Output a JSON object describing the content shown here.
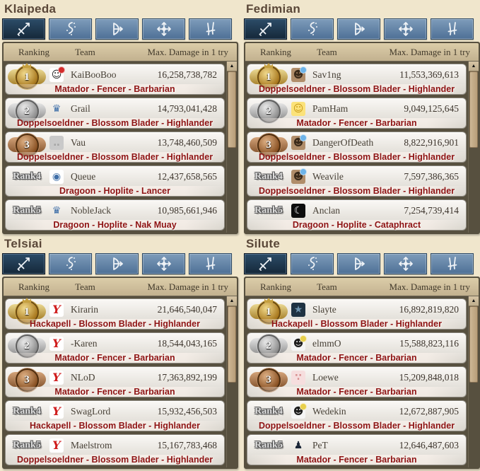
{
  "header": {
    "ranking": "Ranking",
    "team": "Team",
    "damage": "Max. Damage in 1 try"
  },
  "tabs": [
    {
      "name": "swordsman",
      "icon": "sword-icon",
      "active": true
    },
    {
      "name": "wizard",
      "icon": "wizard-staff-icon",
      "active": false
    },
    {
      "name": "archer",
      "icon": "bow-icon",
      "active": false
    },
    {
      "name": "cleric",
      "icon": "cleric-cross-icon",
      "active": false
    },
    {
      "name": "scout",
      "icon": "daggers-icon",
      "active": false
    }
  ],
  "colors": {
    "background": "#f0e6cc",
    "panel_border": "#57503f",
    "tab_active": "#16293c",
    "tab_inactive": "#5d82a8",
    "class_text_red": "#8e1313",
    "gold": "#a9791f",
    "silver": "#8e8e8e",
    "bronze": "#8a5224"
  },
  "panels": [
    {
      "title": "Klaipeda",
      "rows": [
        {
          "rank": "1",
          "medal": "gold",
          "team": "KaiBooBoo",
          "damage": "16,258,738,782",
          "classes": "Matador - Fencer - Barbarian",
          "icon": {
            "name": "santa-penguin-icon",
            "bg": "#ffffff",
            "fg": "#222222",
            "glyph": "☺",
            "accent": "#d42b2b"
          }
        },
        {
          "rank": "2",
          "medal": "silver",
          "team": "Grail",
          "damage": "14,793,041,428",
          "classes": "Doppelsoeldner - Blossom Blader - Highlander",
          "icon": {
            "name": "blue-trophy-icon",
            "bg": "transparent",
            "fg": "#3f6fa8",
            "glyph": "♛"
          }
        },
        {
          "rank": "3",
          "medal": "bronze",
          "team": "Vau",
          "damage": "13,748,460,509",
          "classes": "Doppelsoeldner - Blossom Blader - Highlander",
          "icon": {
            "name": "gray-blank-icon",
            "bg": "#c9c9c9",
            "fg": "#a5a5a5",
            "glyph": "‥"
          }
        },
        {
          "rank_label": "Rank4",
          "team": "Queue",
          "damage": "12,437,658,565",
          "classes": "Dragoon - Hoplite - Lancer",
          "icon": {
            "name": "blue-round-emblem-icon",
            "bg": "#ffffff",
            "fg": "#3f6fa8",
            "glyph": "◉"
          }
        },
        {
          "rank_label": "Rank5",
          "team": "NobleJack",
          "damage": "10,985,661,946",
          "classes": "Dragoon - Hoplite - Nak Muay",
          "icon": {
            "name": "blue-trophy-icon",
            "bg": "transparent",
            "fg": "#3f6fa8",
            "glyph": "♛"
          }
        }
      ]
    },
    {
      "title": "Fedimian",
      "rows": [
        {
          "rank": "1",
          "medal": "gold",
          "team": "Sav1ng",
          "damage": "11,553,369,613",
          "classes": "Doppelsoeldner - Blossom Blader - Highlander",
          "icon": {
            "name": "anime-avatar-icon",
            "bg": "#b08d6a",
            "fg": "#3a2a1a",
            "glyph": "☻",
            "accent": "#6db3e8"
          }
        },
        {
          "rank": "2",
          "medal": "silver",
          "team": "PamHam",
          "damage": "9,049,125,645",
          "classes": "Matador - Fencer - Barbarian",
          "icon": {
            "name": "yellow-chick-icon",
            "bg": "#fbe27a",
            "fg": "#c99a16",
            "glyph": "☺"
          }
        },
        {
          "rank": "3",
          "medal": "bronze",
          "team": "DangerOfDeath",
          "damage": "8,822,916,901",
          "classes": "Doppelsoeldner - Blossom Blader - Highlander",
          "icon": {
            "name": "anime-avatar-icon",
            "bg": "#b08d6a",
            "fg": "#3a2a1a",
            "glyph": "☻",
            "accent": "#6db3e8"
          }
        },
        {
          "rank_label": "Rank4",
          "team": "Weavile",
          "damage": "7,597,386,365",
          "classes": "Doppelsoeldner - Blossom Blader - Highlander",
          "icon": {
            "name": "anime-avatar-icon",
            "bg": "#b08d6a",
            "fg": "#3a2a1a",
            "glyph": "☻",
            "accent": "#6db3e8"
          }
        },
        {
          "rank_label": "Rank5",
          "team": "Anclan",
          "damage": "7,254,739,414",
          "classes": "Dragoon - Hoplite - Cataphract",
          "icon": {
            "name": "crescent-moon-icon",
            "bg": "#0d0d0d",
            "fg": "#f2f2f2",
            "glyph": "☾"
          }
        }
      ]
    },
    {
      "title": "Telsiai",
      "rows": [
        {
          "rank": "1",
          "medal": "gold",
          "team": "Kirarin",
          "damage": "21,646,540,047",
          "classes": "Hackapell - Blossom Blader - Highlander",
          "icon": {
            "name": "red-bird-logo-icon",
            "bg": "#ffffff",
            "fg": "#cf1b1b",
            "glyph": "Y",
            "italic": true
          }
        },
        {
          "rank": "2",
          "medal": "silver",
          "team": "-Karen",
          "damage": "18,544,043,165",
          "classes": "Matador - Fencer - Barbarian",
          "icon": {
            "name": "red-bird-logo-icon",
            "bg": "#ffffff",
            "fg": "#cf1b1b",
            "glyph": "Y",
            "italic": true
          }
        },
        {
          "rank": "3",
          "medal": "bronze",
          "team": "NLoD",
          "damage": "17,363,892,199",
          "classes": "Matador - Fencer - Barbarian",
          "icon": {
            "name": "red-bird-logo-icon",
            "bg": "#ffffff",
            "fg": "#cf1b1b",
            "glyph": "Y",
            "italic": true
          }
        },
        {
          "rank_label": "Rank4",
          "team": "SwagLord",
          "damage": "15,932,456,503",
          "classes": "Hackapell - Blossom Blader - Highlander",
          "icon": {
            "name": "red-bird-logo-icon",
            "bg": "#ffffff",
            "fg": "#cf1b1b",
            "glyph": "Y",
            "italic": true
          }
        },
        {
          "rank_label": "Rank5",
          "team": "Maelstrom",
          "damage": "15,167,783,468",
          "classes": "Doppelsoeldner - Blossom Blader - Highlander",
          "icon": {
            "name": "red-bird-logo-icon",
            "bg": "#ffffff",
            "fg": "#cf1b1b",
            "glyph": "Y",
            "italic": true
          }
        }
      ]
    },
    {
      "title": "Silute",
      "rows": [
        {
          "rank": "1",
          "medal": "gold",
          "team": "Slayte",
          "damage": "16,892,819,820",
          "classes": "Hackapell - Blossom Blader - Highlander",
          "icon": {
            "name": "dark-round-emblem-icon",
            "bg": "#1f3242",
            "fg": "#6e93ad",
            "glyph": "★"
          }
        },
        {
          "rank": "2",
          "medal": "silver",
          "team": "elmmO",
          "damage": "15,588,823,116",
          "classes": "Matador - Fencer - Barbarian",
          "icon": {
            "name": "black-cat-icon",
            "bg": "#f5f5f5",
            "fg": "#1c1c1c",
            "glyph": "☻",
            "accent": "#e8cf4a"
          }
        },
        {
          "rank": "3",
          "medal": "bronze",
          "team": "Loewe",
          "damage": "15,209,848,018",
          "classes": "Matador - Fencer - Barbarian",
          "icon": {
            "name": "pink-face-icon",
            "bg": "#f6dede",
            "fg": "#d89090",
            "glyph": "∵"
          }
        },
        {
          "rank_label": "Rank4",
          "team": "Wedekin",
          "damage": "12,672,887,905",
          "classes": "Doppelsoeldner - Blossom Blader - Highlander",
          "icon": {
            "name": "black-cat-icon",
            "bg": "#f5f5f5",
            "fg": "#1c1c1c",
            "glyph": "☻",
            "accent": "#e8cf4a"
          }
        },
        {
          "rank_label": "Rank5",
          "team": "PeT",
          "damage": "12,646,487,603",
          "classes": "Matador - Fencer - Barbarian",
          "icon": {
            "name": "dark-hat-icon",
            "bg": "transparent",
            "fg": "#1b2738",
            "glyph": "♟"
          }
        }
      ]
    }
  ]
}
